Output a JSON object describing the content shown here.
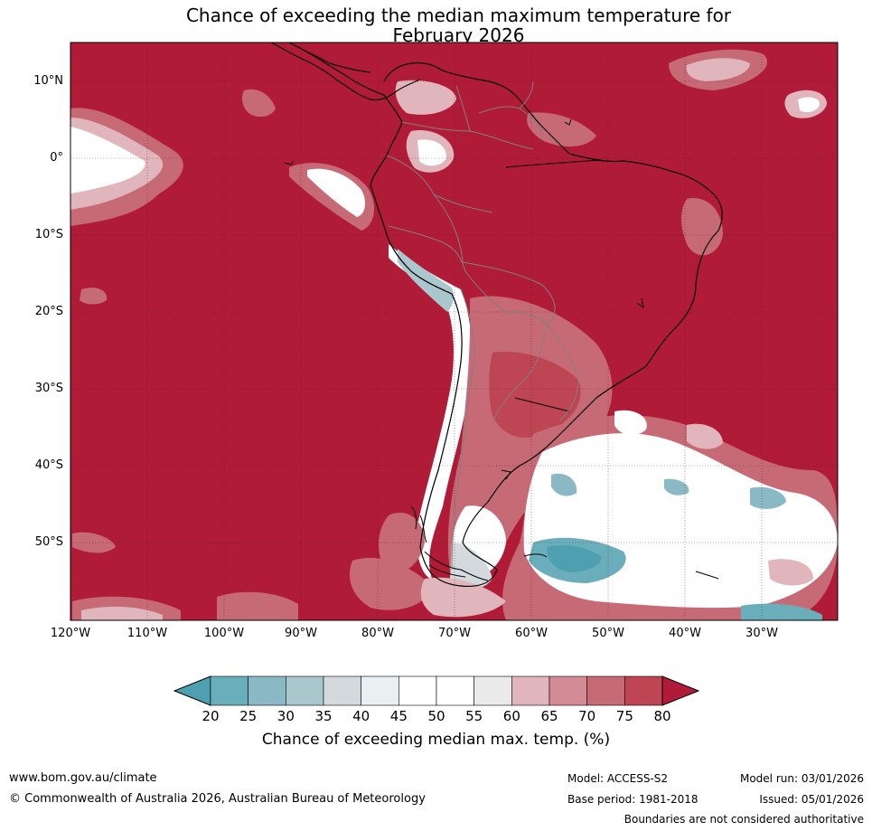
{
  "title": {
    "line1": "Chance of exceeding the median maximum temperature for",
    "line2": "February 2026"
  },
  "map": {
    "lat_labels": [
      "10°N",
      "0°",
      "10°S",
      "20°S",
      "30°S",
      "40°S",
      "50°S"
    ],
    "lon_labels": [
      "120°W",
      "110°W",
      "100°W",
      "90°W",
      "80°W",
      "70°W",
      "60°W",
      "50°W",
      "40°W",
      "30°W"
    ],
    "colors": {
      "dominant": "#b01b37",
      "land_line": "#000000",
      "border_line": "#808080",
      "grid_line": "#5a1020"
    }
  },
  "colorbar": {
    "tick_labels": [
      "20",
      "25",
      "30",
      "35",
      "40",
      "45",
      "50",
      "55",
      "60",
      "65",
      "70",
      "75",
      "80"
    ],
    "colors": [
      "#4e9faf",
      "#6aaebb",
      "#8ab9c5",
      "#abc7ce",
      "#d3d9dc",
      "#eaf0f2",
      "#ffffff",
      "#ffffff",
      "#eaeaea",
      "#e0b5bb",
      "#d38b95",
      "#c66a76",
      "#bd4554",
      "#b01b37"
    ],
    "title": "Chance of exceeding median max. temp. (%)"
  },
  "footer": {
    "site": "www.bom.gov.au/climate",
    "copyright": "© Commonwealth of Australia 2026, Australian Bureau of Meteorology",
    "model": "Model: ACCESS-S2",
    "base_period": "Base period: 1981-2018",
    "model_run": "Model run: 03/01/2026",
    "issued": "Issued: 05/01/2026",
    "boundaries": "Boundaries are not considered authoritative"
  }
}
